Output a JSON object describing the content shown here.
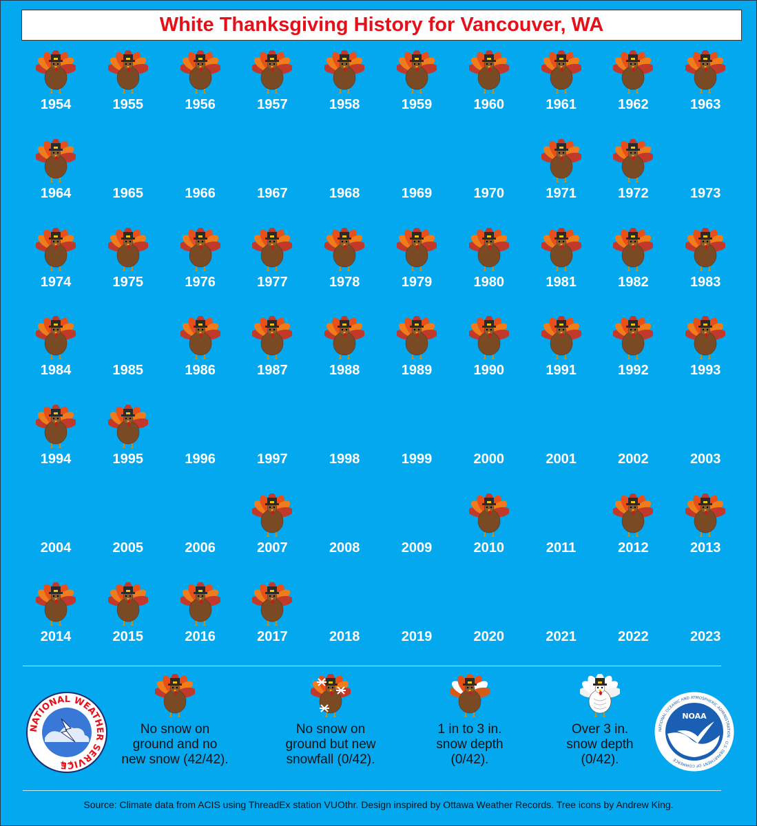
{
  "title": "White Thanksgiving History for Vancouver, WA",
  "years": [
    {
      "year": "1954",
      "turkey": true
    },
    {
      "year": "1955",
      "turkey": true
    },
    {
      "year": "1956",
      "turkey": true
    },
    {
      "year": "1957",
      "turkey": true
    },
    {
      "year": "1958",
      "turkey": true
    },
    {
      "year": "1959",
      "turkey": true
    },
    {
      "year": "1960",
      "turkey": true
    },
    {
      "year": "1961",
      "turkey": true
    },
    {
      "year": "1962",
      "turkey": true
    },
    {
      "year": "1963",
      "turkey": true
    },
    {
      "year": "1964",
      "turkey": true
    },
    {
      "year": "1965",
      "turkey": false
    },
    {
      "year": "1966",
      "turkey": false
    },
    {
      "year": "1967",
      "turkey": false
    },
    {
      "year": "1968",
      "turkey": false
    },
    {
      "year": "1969",
      "turkey": false
    },
    {
      "year": "1970",
      "turkey": false
    },
    {
      "year": "1971",
      "turkey": true
    },
    {
      "year": "1972",
      "turkey": true
    },
    {
      "year": "1973",
      "turkey": false
    },
    {
      "year": "1974",
      "turkey": true
    },
    {
      "year": "1975",
      "turkey": true
    },
    {
      "year": "1976",
      "turkey": true
    },
    {
      "year": "1977",
      "turkey": true
    },
    {
      "year": "1978",
      "turkey": true
    },
    {
      "year": "1979",
      "turkey": true
    },
    {
      "year": "1980",
      "turkey": true
    },
    {
      "year": "1981",
      "turkey": true
    },
    {
      "year": "1982",
      "turkey": true
    },
    {
      "year": "1983",
      "turkey": true
    },
    {
      "year": "1984",
      "turkey": true
    },
    {
      "year": "1985",
      "turkey": false
    },
    {
      "year": "1986",
      "turkey": true
    },
    {
      "year": "1987",
      "turkey": true
    },
    {
      "year": "1988",
      "turkey": true
    },
    {
      "year": "1989",
      "turkey": true
    },
    {
      "year": "1990",
      "turkey": true
    },
    {
      "year": "1991",
      "turkey": true
    },
    {
      "year": "1992",
      "turkey": true
    },
    {
      "year": "1993",
      "turkey": true
    },
    {
      "year": "1994",
      "turkey": true
    },
    {
      "year": "1995",
      "turkey": true
    },
    {
      "year": "1996",
      "turkey": false
    },
    {
      "year": "1997",
      "turkey": false
    },
    {
      "year": "1998",
      "turkey": false
    },
    {
      "year": "1999",
      "turkey": false
    },
    {
      "year": "2000",
      "turkey": false
    },
    {
      "year": "2001",
      "turkey": false
    },
    {
      "year": "2002",
      "turkey": false
    },
    {
      "year": "2003",
      "turkey": false
    },
    {
      "year": "2004",
      "turkey": false
    },
    {
      "year": "2005",
      "turkey": false
    },
    {
      "year": "2006",
      "turkey": false
    },
    {
      "year": "2007",
      "turkey": true
    },
    {
      "year": "2008",
      "turkey": false
    },
    {
      "year": "2009",
      "turkey": false
    },
    {
      "year": "2010",
      "turkey": true
    },
    {
      "year": "2011",
      "turkey": false
    },
    {
      "year": "2012",
      "turkey": true
    },
    {
      "year": "2013",
      "turkey": true
    },
    {
      "year": "2014",
      "turkey": true
    },
    {
      "year": "2015",
      "turkey": true
    },
    {
      "year": "2016",
      "turkey": true
    },
    {
      "year": "2017",
      "turkey": true
    },
    {
      "year": "2018",
      "turkey": false
    },
    {
      "year": "2019",
      "turkey": false
    },
    {
      "year": "2020",
      "turkey": false
    },
    {
      "year": "2021",
      "turkey": false
    },
    {
      "year": "2022",
      "turkey": false
    },
    {
      "year": "2023",
      "turkey": false
    }
  ],
  "legend": [
    {
      "icon": "turkey-icon",
      "text": "No snow on\nground and no\nnew snow (42/42)."
    },
    {
      "icon": "turkey-snowflake-icon",
      "text": "No snow on\nground but new\nsnowfall (0/42)."
    },
    {
      "icon": "turkey-snowy-icon",
      "text": "1 in to 3 in.\nsnow depth\n(0/42)."
    },
    {
      "icon": "turkey-white-icon",
      "text": "Over 3 in.\nsnow depth\n(0/42)."
    }
  ],
  "nws_logo_text": "NATIONAL WEATHER SERVICE",
  "noaa_logo_text": "NOAA",
  "noaa_ring_text": "NATIONAL OCEANIC AND ATMOSPHERIC ADMINISTRATION · U.S. DEPARTMENT OF COMMERCE",
  "source": "Source: Climate data from ACIS using ThreadEx station VUOthr. Design inspired by Ottawa Weather Records. Tree icons by Andrew King.",
  "colors": {
    "background": "#04a8ef",
    "title": "#e4111a",
    "year_text": "#ffffff"
  }
}
